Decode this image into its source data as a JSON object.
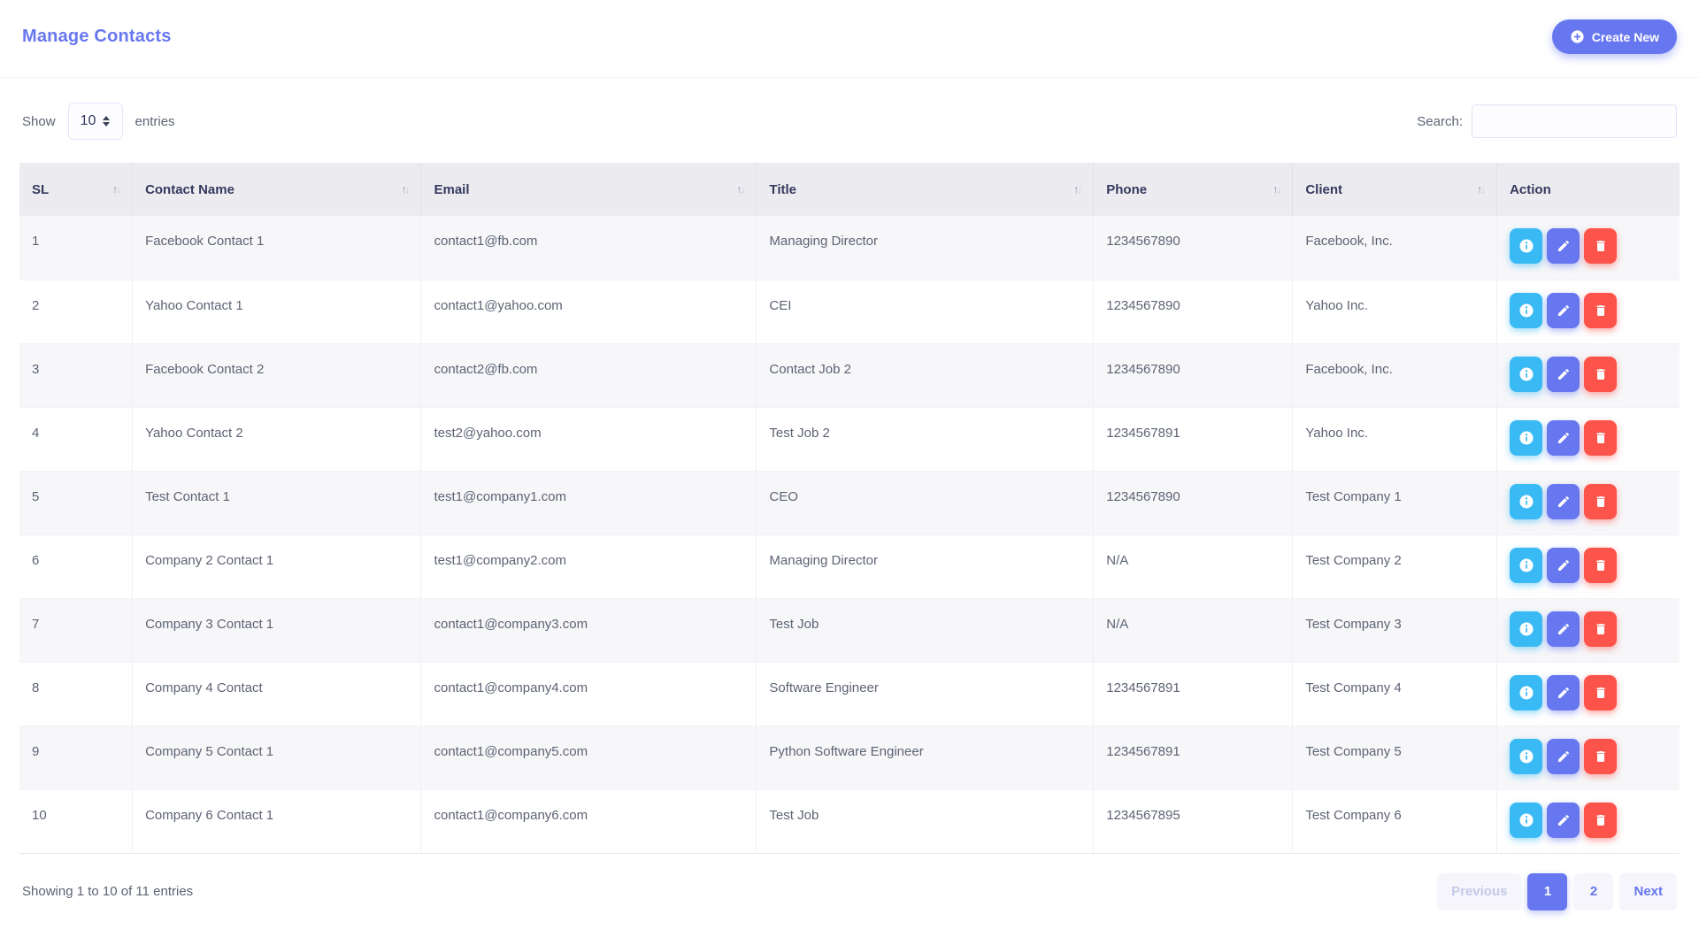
{
  "page": {
    "title": "Manage Contacts"
  },
  "header": {
    "create_button": {
      "label": "Create New",
      "icon": "plus-circle-icon"
    }
  },
  "controls": {
    "show_label": "Show",
    "page_length": "10",
    "entries_label": "entries",
    "search_label": "Search:",
    "search_value": ""
  },
  "table": {
    "columns": [
      {
        "label": "SL",
        "sortable": true
      },
      {
        "label": "Contact Name",
        "sortable": true
      },
      {
        "label": "Email",
        "sortable": true
      },
      {
        "label": "Title",
        "sortable": true
      },
      {
        "label": "Phone",
        "sortable": true
      },
      {
        "label": "Client",
        "sortable": true
      },
      {
        "label": "Action",
        "sortable": false
      }
    ],
    "rows": [
      {
        "sl": "1",
        "name": "Facebook Contact 1",
        "email": "contact1@fb.com",
        "title": "Managing Director",
        "phone": "1234567890",
        "client": "Facebook, Inc."
      },
      {
        "sl": "2",
        "name": "Yahoo Contact 1",
        "email": "contact1@yahoo.com",
        "title": "CEI",
        "phone": "1234567890",
        "client": "Yahoo Inc."
      },
      {
        "sl": "3",
        "name": "Facebook Contact 2",
        "email": "contact2@fb.com",
        "title": "Contact Job 2",
        "phone": "1234567890",
        "client": "Facebook, Inc."
      },
      {
        "sl": "4",
        "name": "Yahoo Contact 2",
        "email": "test2@yahoo.com",
        "title": "Test Job 2",
        "phone": "1234567891",
        "client": "Yahoo Inc."
      },
      {
        "sl": "5",
        "name": "Test Contact 1",
        "email": "test1@company1.com",
        "title": "CEO",
        "phone": "1234567890",
        "client": "Test Company 1"
      },
      {
        "sl": "6",
        "name": "Company 2 Contact 1",
        "email": "test1@company2.com",
        "title": "Managing Director",
        "phone": "N/A",
        "client": "Test Company 2"
      },
      {
        "sl": "7",
        "name": "Company 3 Contact 1",
        "email": "contact1@company3.com",
        "title": "Test Job",
        "phone": "N/A",
        "client": "Test Company 3"
      },
      {
        "sl": "8",
        "name": "Company 4 Contact",
        "email": "contact1@company4.com",
        "title": "Software Engineer",
        "phone": "1234567891",
        "client": "Test Company 4"
      },
      {
        "sl": "9",
        "name": "Company 5 Contact 1",
        "email": "contact1@company5.com",
        "title": "Python Software Engineer",
        "phone": "1234567891",
        "client": "Test Company 5"
      },
      {
        "sl": "10",
        "name": "Company 6 Contact 1",
        "email": "contact1@company6.com",
        "title": "Test Job",
        "phone": "1234567895",
        "client": "Test Company 6"
      }
    ],
    "action_icons": [
      "info-icon",
      "pencil-icon",
      "trash-icon"
    ]
  },
  "footer": {
    "summary": "Showing 1 to 10 of 11 entries",
    "pagination": [
      {
        "label": "Previous",
        "state": "disabled"
      },
      {
        "label": "1",
        "state": "active"
      },
      {
        "label": "2",
        "state": "normal"
      },
      {
        "label": "Next",
        "state": "normal"
      }
    ]
  },
  "colors": {
    "primary": "#6777ef",
    "info": "#3abaf4",
    "danger": "#fc544b"
  }
}
